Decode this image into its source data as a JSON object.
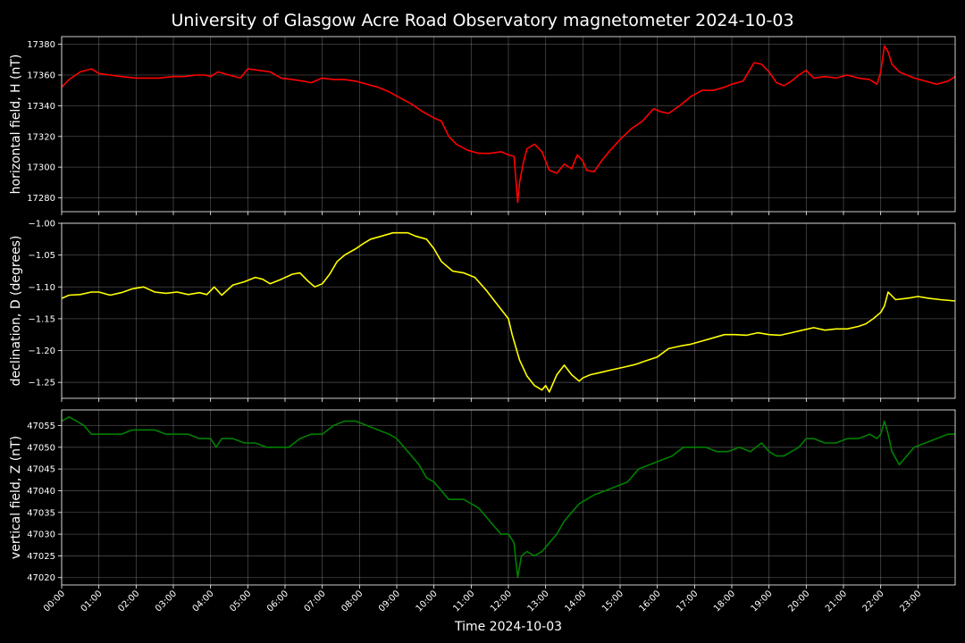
{
  "title": "University of Glasgow Acre Road Observatory magnetometer 2024-10-03",
  "xlabel": "Time 2024-10-03",
  "chart_data": {
    "type": "line",
    "x_ticks": [
      "00:00",
      "01:00",
      "02:00",
      "03:00",
      "04:00",
      "05:00",
      "06:00",
      "07:00",
      "08:00",
      "09:00",
      "10:00",
      "11:00",
      "12:00",
      "13:00",
      "14:00",
      "15:00",
      "16:00",
      "17:00",
      "18:00",
      "19:00",
      "20:00",
      "21:00",
      "22:00",
      "23:00"
    ],
    "x_range_hours": [
      0,
      24
    ],
    "grid": true,
    "panels": [
      {
        "ylabel": "horizontal field, H (nT)",
        "color": "#ff0000",
        "ylim": [
          17271,
          17385
        ],
        "yticks": [
          17280,
          17300,
          17320,
          17340,
          17360,
          17380
        ],
        "ytick_labels": [
          "17280",
          "17300",
          "17320",
          "17340",
          "17360",
          "17380"
        ],
        "x": [
          0,
          0.2,
          0.5,
          0.8,
          1.0,
          1.3,
          1.6,
          2.0,
          2.3,
          2.6,
          3.0,
          3.3,
          3.6,
          3.85,
          4.0,
          4.2,
          4.5,
          4.8,
          5.0,
          5.3,
          5.6,
          5.9,
          6.2,
          6.5,
          6.7,
          7.0,
          7.3,
          7.6,
          7.9,
          8.2,
          8.5,
          8.8,
          9.1,
          9.4,
          9.7,
          10.0,
          10.2,
          10.4,
          10.6,
          10.9,
          11.2,
          11.5,
          11.8,
          12.0,
          12.15,
          12.25,
          12.3,
          12.4,
          12.5,
          12.7,
          12.9,
          13.1,
          13.3,
          13.5,
          13.7,
          13.85,
          14.0,
          14.1,
          14.3,
          14.5,
          14.7,
          15.0,
          15.3,
          15.6,
          15.9,
          16.1,
          16.3,
          16.6,
          16.9,
          17.2,
          17.5,
          17.8,
          18.0,
          18.3,
          18.6,
          18.8,
          19.0,
          19.2,
          19.4,
          19.6,
          19.8,
          20.0,
          20.2,
          20.5,
          20.8,
          21.1,
          21.4,
          21.7,
          21.9,
          22.0,
          22.1,
          22.2,
          22.3,
          22.5,
          22.7,
          22.9,
          23.2,
          23.5,
          23.8,
          24.0
        ],
        "y": [
          17352,
          17357,
          17362,
          17364,
          17361,
          17360,
          17359,
          17358,
          17358,
          17358,
          17359,
          17359,
          17360,
          17360,
          17359,
          17362,
          17360,
          17358,
          17364,
          17363,
          17362,
          17358,
          17357,
          17356,
          17355,
          17358,
          17357,
          17357,
          17356,
          17354,
          17352,
          17349,
          17345,
          17341,
          17336,
          17332,
          17330,
          17320,
          17315,
          17311,
          17309,
          17309,
          17310,
          17308,
          17307,
          17277,
          17290,
          17303,
          17312,
          17315,
          17310,
          17298,
          17296,
          17302,
          17299,
          17308,
          17304,
          17298,
          17297,
          17304,
          17310,
          17318,
          17325,
          17330,
          17338,
          17336,
          17335,
          17340,
          17346,
          17350,
          17350,
          17352,
          17354,
          17356,
          17368,
          17367,
          17362,
          17355,
          17353,
          17356,
          17360,
          17363,
          17358,
          17359,
          17358,
          17360,
          17358,
          17357,
          17354,
          17362,
          17379,
          17375,
          17367,
          17362,
          17360,
          17358,
          17356,
          17354,
          17356,
          17359
        ]
      },
      {
        "ylabel": "declination, D (degrees)",
        "color": "#ffff00",
        "ylim": [
          -1.275,
          -1.0
        ],
        "yticks": [
          -1.25,
          -1.2,
          -1.15,
          -1.1,
          -1.05,
          -1.0
        ],
        "ytick_labels": [
          "−1.25",
          "−1.20",
          "−1.15",
          "−1.10",
          "−1.05",
          "−1.00"
        ],
        "x": [
          0,
          0.2,
          0.5,
          0.8,
          1.0,
          1.3,
          1.6,
          1.9,
          2.2,
          2.5,
          2.8,
          3.1,
          3.4,
          3.7,
          3.9,
          4.1,
          4.3,
          4.6,
          4.9,
          5.2,
          5.4,
          5.6,
          5.9,
          6.2,
          6.4,
          6.6,
          6.8,
          7.0,
          7.2,
          7.4,
          7.6,
          7.9,
          8.1,
          8.3,
          8.6,
          8.9,
          9.1,
          9.3,
          9.5,
          9.8,
          10.0,
          10.2,
          10.5,
          10.8,
          11.1,
          11.4,
          11.6,
          11.8,
          12.0,
          12.1,
          12.3,
          12.5,
          12.7,
          12.9,
          13.0,
          13.1,
          13.3,
          13.5,
          13.7,
          13.9,
          14.0,
          14.2,
          14.5,
          14.8,
          15.1,
          15.4,
          15.7,
          16.0,
          16.3,
          16.6,
          16.9,
          17.2,
          17.5,
          17.8,
          18.1,
          18.4,
          18.7,
          19.0,
          19.3,
          19.6,
          19.9,
          20.2,
          20.5,
          20.8,
          21.1,
          21.4,
          21.6,
          21.8,
          22.0,
          22.1,
          22.2,
          22.4,
          22.7,
          23.0,
          23.3,
          23.6,
          24.0
        ],
        "y": [
          -1.118,
          -1.113,
          -1.112,
          -1.108,
          -1.108,
          -1.113,
          -1.109,
          -1.103,
          -1.1,
          -1.108,
          -1.11,
          -1.108,
          -1.112,
          -1.109,
          -1.112,
          -1.1,
          -1.113,
          -1.097,
          -1.092,
          -1.085,
          -1.088,
          -1.095,
          -1.088,
          -1.08,
          -1.078,
          -1.09,
          -1.1,
          -1.095,
          -1.08,
          -1.06,
          -1.05,
          -1.04,
          -1.032,
          -1.025,
          -1.02,
          -1.015,
          -1.015,
          -1.015,
          -1.02,
          -1.025,
          -1.04,
          -1.06,
          -1.075,
          -1.078,
          -1.085,
          -1.105,
          -1.12,
          -1.135,
          -1.15,
          -1.175,
          -1.215,
          -1.24,
          -1.255,
          -1.262,
          -1.255,
          -1.265,
          -1.238,
          -1.223,
          -1.238,
          -1.248,
          -1.243,
          -1.238,
          -1.234,
          -1.23,
          -1.226,
          -1.222,
          -1.216,
          -1.21,
          -1.197,
          -1.193,
          -1.19,
          -1.185,
          -1.18,
          -1.175,
          -1.175,
          -1.176,
          -1.172,
          -1.175,
          -1.176,
          -1.172,
          -1.168,
          -1.164,
          -1.168,
          -1.166,
          -1.166,
          -1.162,
          -1.158,
          -1.15,
          -1.14,
          -1.13,
          -1.108,
          -1.12,
          -1.118,
          -1.115,
          -1.118,
          -1.12,
          -1.122
        ]
      },
      {
        "ylabel": "vertical field, Z (nT)",
        "color": "#008000",
        "ylim": [
          47018.3,
          47058.6
        ],
        "yticks": [
          47020,
          47025,
          47030,
          47035,
          47040,
          47045,
          47050,
          47055
        ],
        "ytick_labels": [
          "47020",
          "47025",
          "47030",
          "47035",
          "47040",
          "47045",
          "47050",
          "47055"
        ],
        "x": [
          0,
          0.2,
          0.4,
          0.6,
          0.8,
          1.0,
          1.3,
          1.6,
          1.9,
          2.2,
          2.5,
          2.8,
          3.1,
          3.4,
          3.7,
          4.0,
          4.15,
          4.3,
          4.6,
          4.9,
          5.2,
          5.5,
          5.8,
          6.1,
          6.4,
          6.7,
          7.0,
          7.3,
          7.6,
          7.9,
          8.2,
          8.5,
          8.8,
          9.0,
          9.2,
          9.4,
          9.6,
          9.8,
          10.0,
          10.2,
          10.4,
          10.6,
          10.8,
          11.0,
          11.2,
          11.4,
          11.6,
          11.8,
          12.0,
          12.15,
          12.25,
          12.35,
          12.5,
          12.7,
          12.9,
          13.1,
          13.3,
          13.5,
          13.7,
          13.9,
          14.1,
          14.3,
          14.6,
          14.9,
          15.2,
          15.5,
          15.8,
          16.1,
          16.4,
          16.7,
          17.0,
          17.3,
          17.6,
          17.9,
          18.2,
          18.5,
          18.8,
          19.0,
          19.2,
          19.4,
          19.6,
          19.8,
          20.0,
          20.2,
          20.5,
          20.8,
          21.1,
          21.4,
          21.7,
          21.9,
          22.0,
          22.1,
          22.2,
          22.3,
          22.5,
          22.7,
          22.9,
          23.2,
          23.5,
          23.8,
          24.0
        ],
        "y": [
          47056,
          47057,
          47056,
          47055,
          47053,
          47053,
          47053,
          47053,
          47054,
          47054,
          47054,
          47053,
          47053,
          47053,
          47052,
          47052,
          47050,
          47052,
          47052,
          47051,
          47051,
          47050,
          47050,
          47050,
          47052,
          47053,
          47053,
          47055,
          47056,
          47056,
          47055,
          47054,
          47053,
          47052,
          47050,
          47048,
          47046,
          47043,
          47042,
          47040,
          47038,
          47038,
          47038,
          47037,
          47036,
          47034,
          47032,
          47030,
          47030,
          47028,
          47020,
          47025,
          47026,
          47025,
          47026,
          47028,
          47030,
          47033,
          47035,
          47037,
          47038,
          47039,
          47040,
          47041,
          47042,
          47045,
          47046,
          47047,
          47048,
          47050,
          47050,
          47050,
          47049,
          47049,
          47050,
          47049,
          47051,
          47049,
          47048,
          47048,
          47049,
          47050,
          47052,
          47052,
          47051,
          47051,
          47052,
          47052,
          47053,
          47052,
          47053,
          47056,
          47053,
          47049,
          47046,
          47048,
          47050,
          47051,
          47052,
          47053,
          47053
        ]
      }
    ]
  }
}
